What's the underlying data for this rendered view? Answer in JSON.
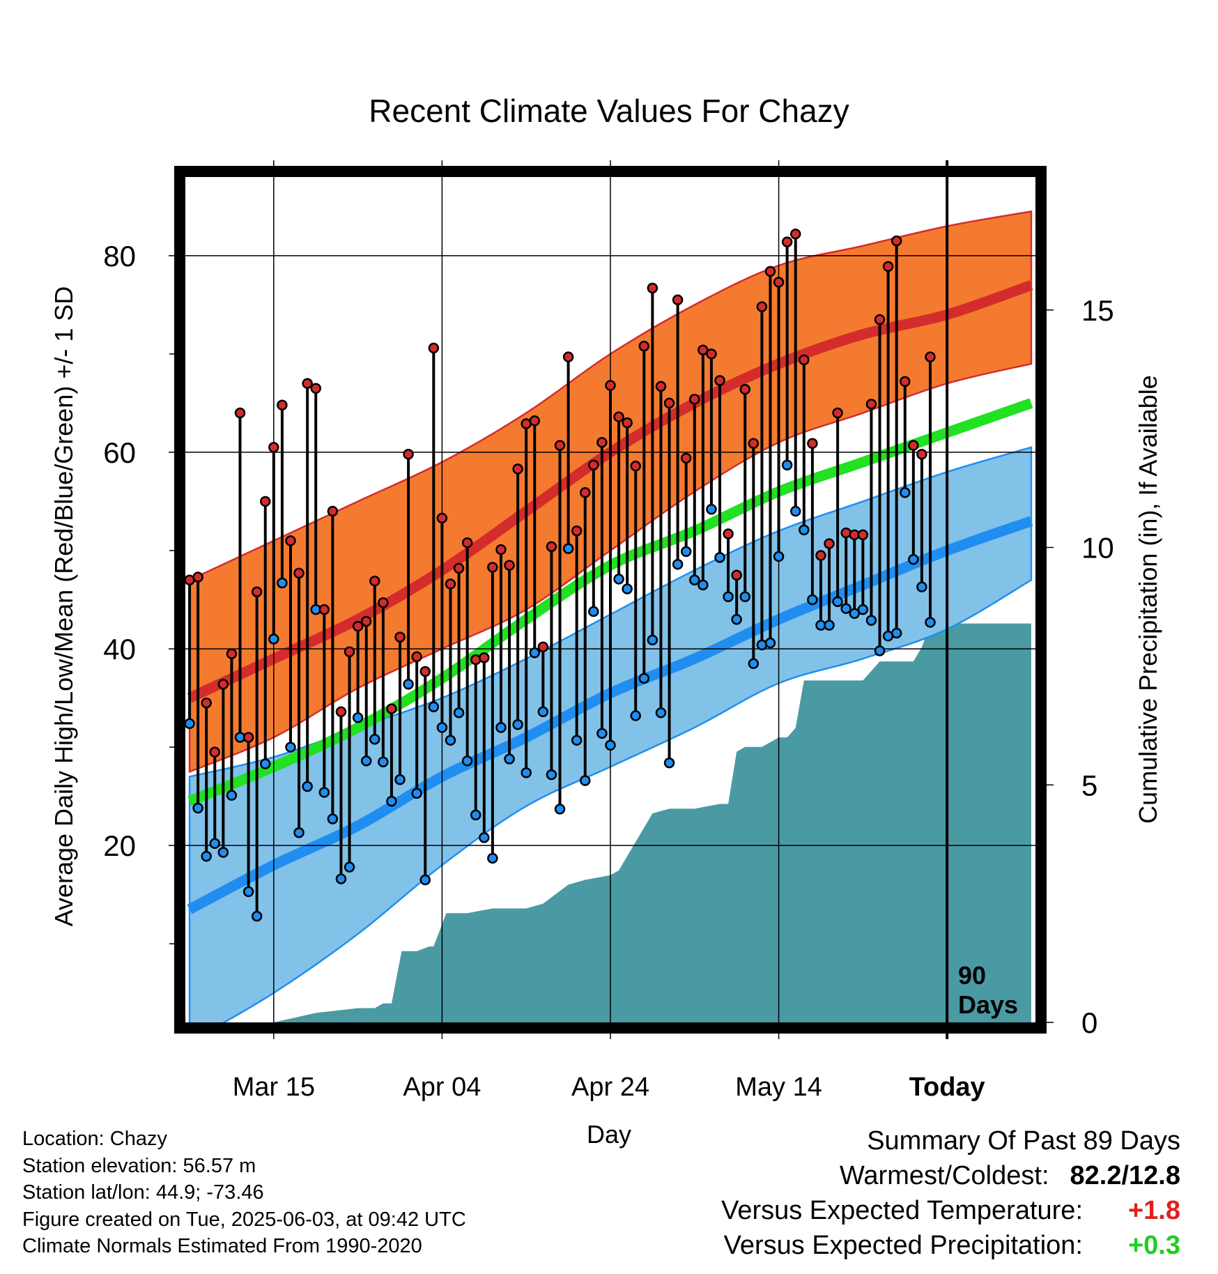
{
  "chart_data": {
    "type": "line",
    "title": "Recent Climate Values For Chazy",
    "xlabel": "Day",
    "ylabel": "Average Daily High/Low/Mean (Red/Blue/Green) +/- 1 SD",
    "y2label": "Cumulative Precipitation (in), If Available",
    "x_tick_labels": [
      "Mar 15",
      "Apr 04",
      "Apr 24",
      "May 14",
      "Today"
    ],
    "x_tick_days": [
      10,
      30,
      50,
      70,
      90
    ],
    "ylim": [
      2,
      88
    ],
    "y_ticks": [
      20,
      40,
      60,
      80
    ],
    "y2lim": [
      0,
      17.8
    ],
    "y2_ticks": [
      0,
      5,
      10,
      15
    ],
    "today_label": [
      "90",
      "Days"
    ],
    "normals": {
      "day": [
        0,
        10,
        20,
        30,
        40,
        50,
        60,
        70,
        80,
        90,
        100
      ],
      "high_mean": [
        35,
        39,
        43,
        48,
        54,
        60,
        65,
        69,
        72,
        74,
        77
      ],
      "high_plus_sd": [
        47,
        51,
        55,
        59,
        64,
        70,
        75,
        79,
        81,
        83,
        84.5
      ],
      "high_minus_sd": [
        27.5,
        31,
        36,
        40,
        44,
        50,
        56,
        61,
        64,
        67,
        69
      ],
      "normal_mean": [
        24.5,
        28,
        32,
        37,
        43,
        48.5,
        52,
        56,
        59,
        62,
        65
      ],
      "low_mean": [
        13.5,
        18,
        22,
        27,
        31,
        35.5,
        39,
        43,
        46.5,
        50,
        53
      ],
      "low_plus_sd": [
        27,
        29,
        32,
        35,
        39,
        43.5,
        48,
        52,
        55,
        58,
        60.5
      ],
      "low_minus_sd": [
        0,
        5,
        11,
        18,
        24,
        28,
        32,
        36.5,
        39,
        42,
        47
      ]
    },
    "observations": {
      "high": [
        47,
        47.3,
        34.5,
        29.5,
        36.4,
        39.5,
        64,
        31,
        45.8,
        55,
        60.5,
        64.8,
        51,
        47.7,
        67,
        66.5,
        44,
        54,
        33.6,
        39.7,
        42.3,
        42.8,
        46.9,
        44.7,
        33.9,
        41.2,
        59.8,
        39.2,
        37.7,
        70.6,
        53.3,
        46.6,
        48.2,
        50.8,
        38.9,
        39.1,
        48.3,
        50.1,
        48.5,
        58.3,
        62.9,
        63.2,
        40.2,
        50.4,
        60.7,
        69.7,
        52,
        55.9,
        58.7,
        61,
        66.8,
        63.6,
        63,
        58.6,
        70.8,
        76.7,
        66.7,
        65,
        75.5,
        59.4,
        65.4,
        70.4,
        70,
        67.3,
        51.7,
        47.5,
        66.4,
        60.9,
        74.8,
        78.4,
        77.3,
        81.4,
        82.2,
        69.4,
        60.9,
        49.5,
        50.7,
        64,
        51.8,
        51.6,
        51.6,
        64.9,
        73.5,
        78.9,
        81.5,
        67.2,
        60.7,
        59.8,
        69.7
      ],
      "low": [
        32.4,
        23.8,
        18.9,
        20.2,
        19.3,
        25.1,
        31,
        15.3,
        12.8,
        28.3,
        41,
        46.7,
        30,
        21.3,
        26,
        44,
        25.4,
        22.7,
        16.6,
        17.8,
        33,
        28.6,
        30.8,
        28.5,
        24.5,
        26.7,
        36.4,
        25.3,
        16.5,
        34.1,
        32,
        30.7,
        33.5,
        28.6,
        23.1,
        20.8,
        18.7,
        32,
        28.8,
        32.3,
        27.4,
        39.6,
        33.6,
        27.2,
        23.7,
        50.2,
        30.7,
        26.6,
        43.8,
        31.4,
        30.2,
        47.1,
        46.1,
        33.2,
        37,
        40.9,
        33.5,
        28.4,
        48.6,
        49.9,
        47,
        46.5,
        54.2,
        49.3,
        45.3,
        43,
        45.3,
        38.5,
        40.4,
        40.6,
        49.4,
        58.7,
        54,
        52.1,
        45,
        42.4,
        42.4,
        44.8,
        44.1,
        43.6,
        44,
        42.9,
        39.8,
        41.3,
        41.6,
        55.9,
        49.1,
        46.3,
        42.7
      ]
    },
    "precipitation": {
      "day": [
        0,
        10,
        15,
        20,
        22,
        23,
        24,
        25.2,
        27,
        28.5,
        29,
        30.5,
        33,
        36,
        38,
        40,
        42,
        45,
        47,
        50,
        51,
        53,
        55,
        57,
        60,
        63,
        64,
        65,
        66,
        68,
        70,
        71,
        72,
        73,
        75,
        78,
        80,
        82,
        84,
        85,
        86,
        87,
        88,
        100
      ],
      "value": [
        0,
        0,
        0.2,
        0.3,
        0.3,
        0.4,
        0.4,
        1.5,
        1.5,
        1.6,
        1.6,
        2.3,
        2.3,
        2.4,
        2.4,
        2.4,
        2.5,
        2.9,
        3.0,
        3.1,
        3.2,
        3.8,
        4.4,
        4.5,
        4.5,
        4.6,
        4.6,
        5.7,
        5.8,
        5.8,
        6.0,
        6.0,
        6.2,
        7.2,
        7.2,
        7.2,
        7.2,
        7.6,
        7.6,
        7.6,
        7.6,
        7.9,
        8.4,
        8.4
      ]
    },
    "grid": true,
    "colors": {
      "high_band": "#f47a30",
      "high_line": "#d42c2c",
      "mean_line": "#22e022",
      "low_band": "#82c2e8",
      "low_line": "#1f8ef0",
      "precip": "#4a9aa4",
      "high_dot": "#d42c2c",
      "low_dot": "#1f8ef0"
    }
  },
  "footer": {
    "location": "Location: Chazy",
    "elevation": "Station elevation: 56.57 m",
    "latlon": "Station lat/lon: 44.9; -73.46",
    "created": "Figure created on Tue, 2025-06-03, at 09:42 UTC",
    "normals": "Climate Normals Estimated From 1990-2020"
  },
  "summary": {
    "title": "Summary Of Past 89 Days",
    "warmest_label": "Warmest/Coldest:",
    "warmest_value": "82.2/12.8",
    "temp_label": "Versus Expected Temperature:",
    "temp_value": "+1.8",
    "temp_color": "#e02020",
    "precip_label": "Versus Expected Precipitation:",
    "precip_value": "+0.3",
    "precip_color": "#22cc22"
  }
}
